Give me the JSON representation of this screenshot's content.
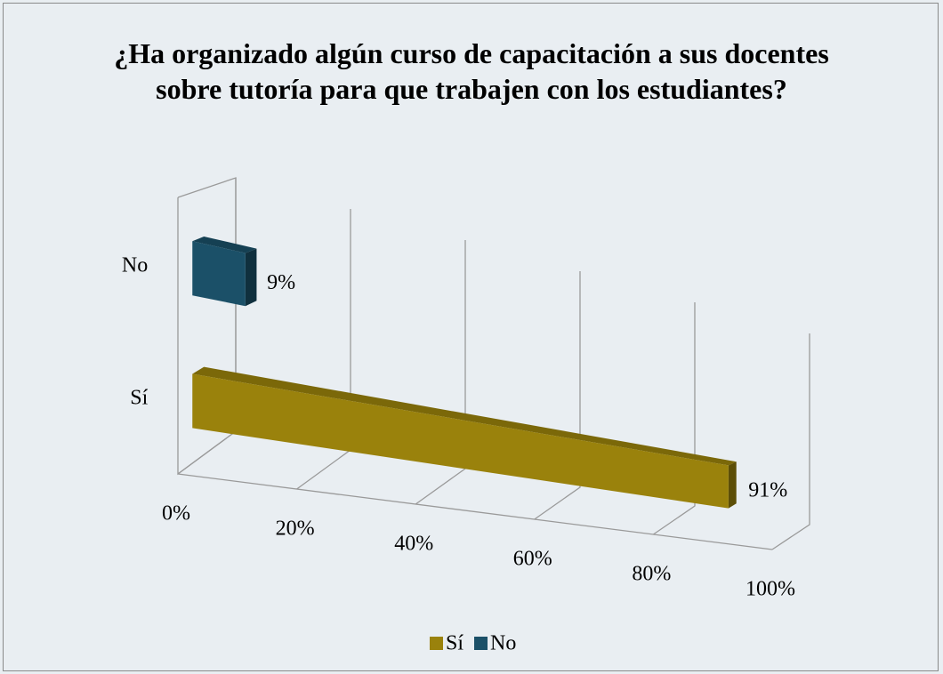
{
  "chart_data": {
    "type": "bar3d",
    "orientation": "horizontal",
    "title": "¿Ha organizado algún curso de capacitación a sus docentes sobre tutoría para que trabajen con los estudiantes?",
    "categories": [
      "Sí",
      "No"
    ],
    "series": [
      {
        "name": "Sí",
        "color": "#9a820c",
        "values": [
          91,
          null
        ],
        "value_labels": [
          "91%",
          null
        ]
      },
      {
        "name": "No",
        "color": "#1b5068",
        "values": [
          null,
          9
        ],
        "value_labels": [
          null,
          "9%"
        ]
      }
    ],
    "xlim": [
      0,
      100
    ],
    "xticks": [
      {
        "value": 0,
        "label": "0%"
      },
      {
        "value": 20,
        "label": "20%"
      },
      {
        "value": 40,
        "label": "40%"
      },
      {
        "value": 60,
        "label": "60%"
      },
      {
        "value": 80,
        "label": "80%"
      },
      {
        "value": 100,
        "label": "100%"
      }
    ],
    "grid": true,
    "legend": "bottom"
  }
}
